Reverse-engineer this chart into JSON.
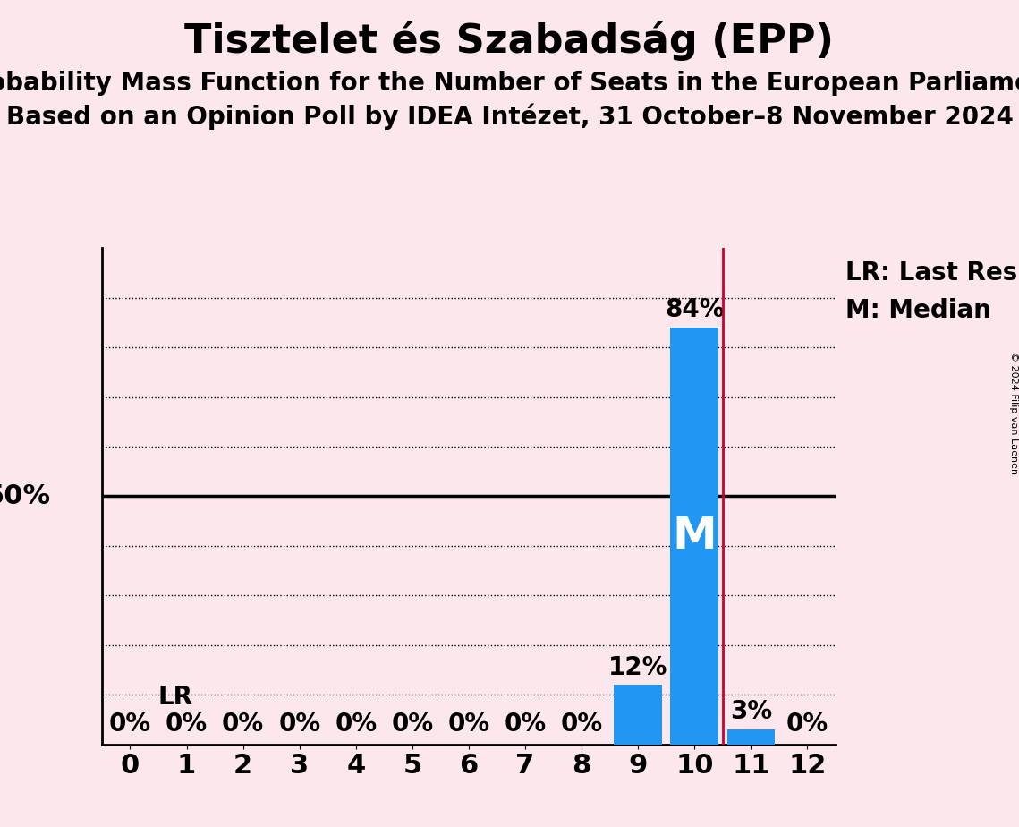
{
  "title": "Tisztelet és Szabadság (EPP)",
  "subtitle1": "Probability Mass Function for the Number of Seats in the European Parliament",
  "subtitle2": "Based on an Opinion Poll by IDEA Intézet, 31 October–8 November 2024",
  "copyright": "© 2024 Filip van Laenen",
  "seats": [
    0,
    1,
    2,
    3,
    4,
    5,
    6,
    7,
    8,
    9,
    10,
    11,
    12
  ],
  "probabilities": [
    0,
    0,
    0,
    0,
    0,
    0,
    0,
    0,
    0,
    12,
    84,
    3,
    0
  ],
  "bar_color": "#2196F3",
  "median_seat": 10,
  "last_result_seat": 10.5,
  "last_result_color": "#CC0033",
  "background_color": "#fce8ec",
  "xlim": [
    -0.5,
    12.5
  ],
  "ylim": [
    0,
    100
  ],
  "dotted_lines_y": [
    10,
    20,
    30,
    40,
    60,
    70,
    80,
    90
  ],
  "solid_line_y": 50,
  "title_fontsize": 32,
  "subtitle_fontsize": 20,
  "tick_fontsize": 22,
  "annotation_fontsize": 20,
  "legend_fontsize": 20,
  "bar_width": 0.85
}
